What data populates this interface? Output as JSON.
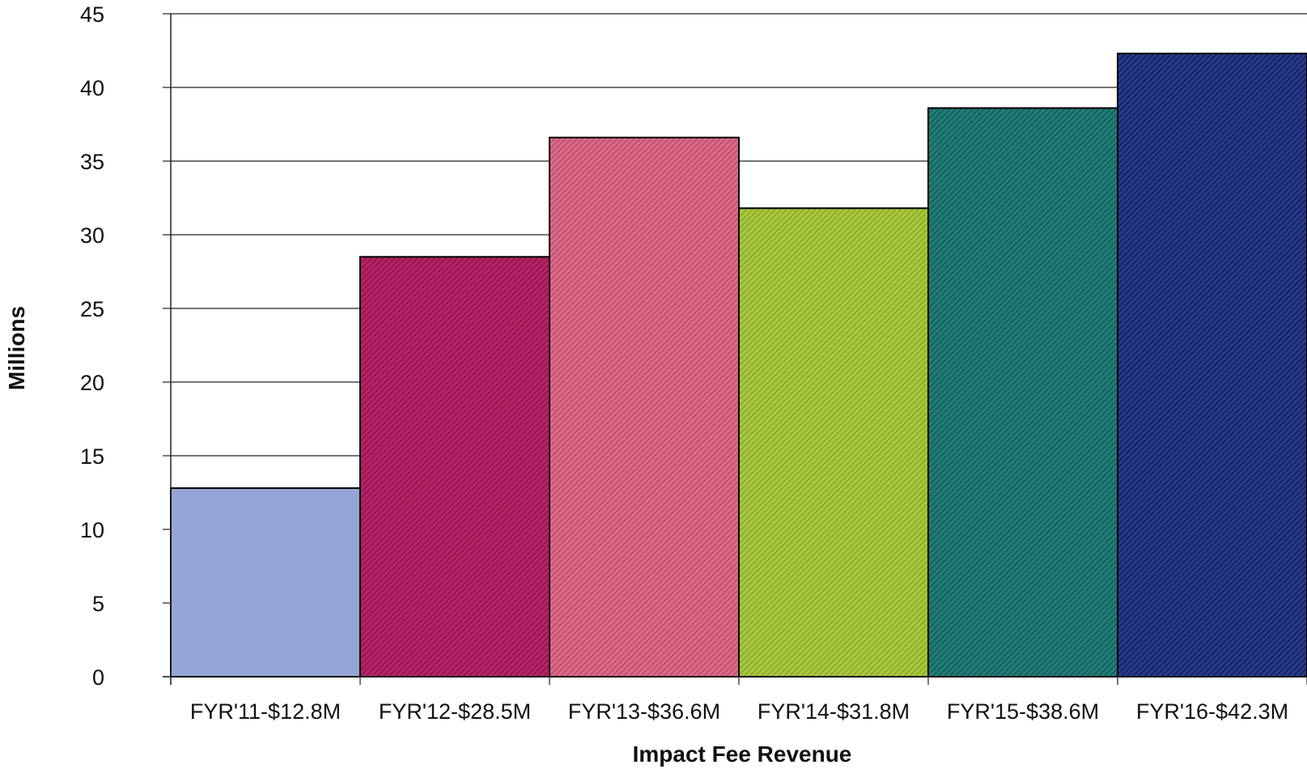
{
  "chart_data": {
    "type": "bar",
    "categories": [
      "FYR'11-$12.8M",
      "FYR'12-$28.5M",
      "FYR'13-$36.6M",
      "FYR'14-$31.8M",
      "FYR'15-$38.6M",
      "FYR'16-$42.3M"
    ],
    "values": [
      12.8,
      28.5,
      36.6,
      31.8,
      38.6,
      42.3
    ],
    "colors": [
      "#95A5D6",
      "#B32467",
      "#DB6A88",
      "#A9C640",
      "#237B77",
      "#263A86"
    ],
    "hatched": [
      false,
      true,
      true,
      true,
      true,
      true
    ],
    "title": "",
    "xlabel": "Impact Fee Revenue",
    "ylabel": "Millions",
    "ylim": [
      0,
      45
    ],
    "yticks": [
      0,
      5,
      10,
      15,
      20,
      25,
      30,
      35,
      40,
      45
    ],
    "grid": true,
    "legend": "none"
  }
}
